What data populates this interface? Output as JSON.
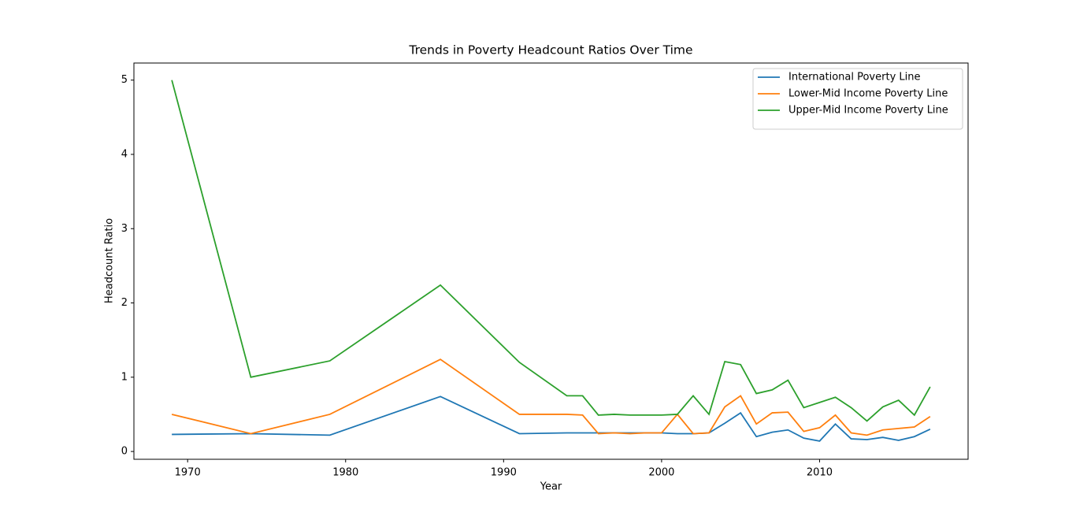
{
  "chart_data": {
    "type": "line",
    "title": "Trends in Poverty Headcount Ratios Over Time",
    "xlabel": "Year",
    "ylabel": "Headcount Ratio",
    "x": [
      1969,
      1974,
      1979,
      1986,
      1991,
      1994,
      1995,
      1996,
      1997,
      1998,
      1999,
      2000,
      2001,
      2002,
      2003,
      2004,
      2005,
      2006,
      2007,
      2008,
      2009,
      2010,
      2011,
      2012,
      2013,
      2014,
      2015,
      2016,
      2017
    ],
    "series": [
      {
        "name": "International Poverty Line",
        "color": "#1f77b4",
        "values": [
          0.23,
          0.24,
          0.22,
          0.74,
          0.24,
          0.25,
          0.25,
          0.25,
          0.25,
          0.25,
          0.25,
          0.25,
          0.24,
          0.24,
          0.25,
          0.38,
          0.52,
          0.2,
          0.26,
          0.29,
          0.18,
          0.14,
          0.37,
          0.17,
          0.16,
          0.19,
          0.15,
          0.2,
          0.3
        ]
      },
      {
        "name": "Lower-Mid Income Poverty Line",
        "color": "#ff7f0e",
        "values": [
          0.5,
          0.24,
          0.5,
          1.24,
          0.5,
          0.5,
          0.49,
          0.24,
          0.25,
          0.24,
          0.25,
          0.25,
          0.5,
          0.24,
          0.25,
          0.6,
          0.75,
          0.37,
          0.52,
          0.53,
          0.27,
          0.32,
          0.49,
          0.25,
          0.22,
          0.29,
          0.31,
          0.33,
          0.47
        ]
      },
      {
        "name": "Upper-Mid Income Poverty Line",
        "color": "#2ca02c",
        "values": [
          5.0,
          1.0,
          1.22,
          2.24,
          1.2,
          0.75,
          0.75,
          0.49,
          0.5,
          0.49,
          0.49,
          0.49,
          0.5,
          0.75,
          0.5,
          1.21,
          1.17,
          0.78,
          0.83,
          0.96,
          0.59,
          0.66,
          0.73,
          0.59,
          0.41,
          0.6,
          0.69,
          0.49,
          0.87
        ]
      }
    ],
    "xlim": [
      1966.6,
      2019.4
    ],
    "xticks": [
      1970,
      1980,
      1990,
      2000,
      2010
    ],
    "ylim": [
      -0.105,
      5.23
    ],
    "yticks": [
      0,
      1,
      2,
      3,
      4,
      5
    ],
    "grid": false,
    "legend": "upper right"
  }
}
